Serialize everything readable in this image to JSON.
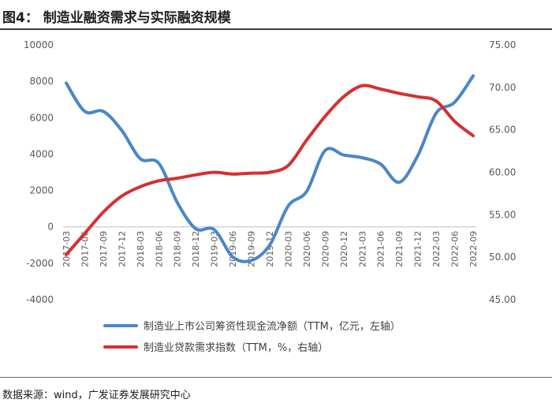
{
  "figure": {
    "title": "图4：  制造业融资需求与实际融资规模",
    "source": "数据来源：wind，广发证券发展研究中心"
  },
  "chart_data": {
    "type": "line",
    "title": "制造业融资需求与实际融资规模",
    "categories": [
      "2017-03",
      "2017-06",
      "2017-09",
      "2017-12",
      "2018-03",
      "2018-06",
      "2018-09",
      "2018-12",
      "2019-03",
      "2019-06",
      "2019-09",
      "2019-12",
      "2020-03",
      "2020-06",
      "2020-09",
      "2020-12",
      "2021-03",
      "2021-06",
      "2021-09",
      "2021-12",
      "2022-03",
      "2022-06",
      "2022-09"
    ],
    "x_tick_labels": [
      "2017-03",
      "2017-06",
      "2017-09",
      "2017-12",
      "2018-03",
      "2018-06",
      "2018-09",
      "2018-12",
      "2019-03",
      "2019-06",
      "2019-09",
      "2019-12",
      "2020-03",
      "2020-06",
      "2020-09",
      "2020-12",
      "2021-03",
      "2021-06",
      "2021-09",
      "2021-12",
      "2022-03",
      "2022-06",
      "2022-09"
    ],
    "y_left": {
      "ylim": [
        -4000,
        10000
      ],
      "ticks": [
        -4000,
        -2000,
        0,
        2000,
        4000,
        6000,
        8000,
        10000
      ],
      "tick_labels": [
        "-4000",
        "-2000",
        "0",
        "2000",
        "4000",
        "6000",
        "8000",
        "10000"
      ]
    },
    "y_right": {
      "ylim": [
        45,
        75
      ],
      "ticks": [
        45,
        50,
        55,
        60,
        65,
        70,
        75
      ],
      "tick_labels": [
        "45.00",
        "50.00",
        "55.00",
        "60.00",
        "65.00",
        "70.00",
        "75.00"
      ]
    },
    "grid": false,
    "legend_position": "bottom",
    "series": [
      {
        "name": "制造业上市公司筹资性现金流净额（TTM，亿元，左轴）",
        "axis": "left",
        "color": "#4a86c8",
        "values": [
          7900,
          6350,
          6350,
          5300,
          3750,
          3500,
          1350,
          -100,
          -150,
          -1650,
          -1850,
          -1000,
          1150,
          1950,
          4200,
          3950,
          3800,
          3450,
          2450,
          3900,
          6250,
          6850,
          8300
        ]
      },
      {
        "name": "制造业贷款需求指数（TTM，%，右轴）",
        "axis": "right",
        "color": "#d62f2f",
        "values": [
          50.3,
          52.8,
          55.3,
          57.2,
          58.3,
          59.0,
          59.3,
          59.7,
          60.0,
          59.8,
          59.9,
          60.0,
          60.8,
          63.8,
          66.6,
          68.9,
          70.2,
          69.8,
          69.3,
          68.9,
          68.4,
          66.0,
          64.3
        ]
      }
    ]
  }
}
